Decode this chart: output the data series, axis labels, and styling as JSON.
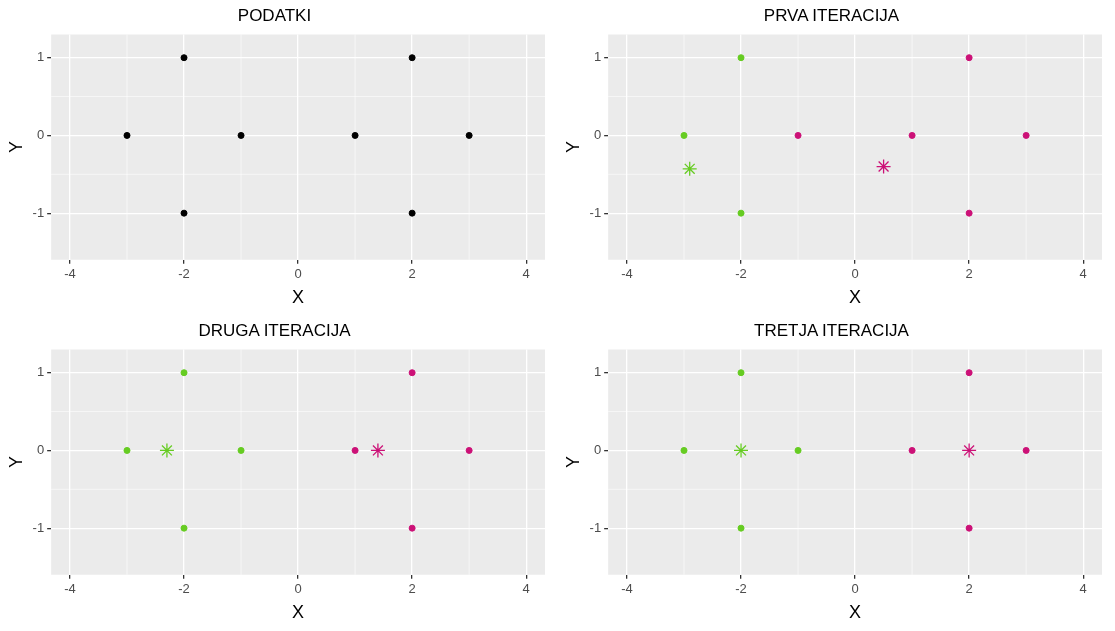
{
  "chart_data": [
    {
      "type": "scatter",
      "title": "PODATKI",
      "xlabel": "X",
      "ylabel": "Y",
      "xlim": [
        -4.33,
        4.33
      ],
      "ylim": [
        -1.6,
        1.3
      ],
      "xticks": [
        -4,
        -2,
        0,
        2,
        4
      ],
      "yticks": [
        -1,
        0,
        1
      ],
      "grid": true,
      "marker": "circle",
      "legend": false,
      "series": [
        {
          "color": "#000000",
          "x": [
            -3,
            -2,
            -2,
            -1,
            1,
            2,
            2,
            3
          ],
          "values": [
            0,
            1,
            -1,
            0,
            0,
            1,
            -1,
            0
          ]
        }
      ]
    },
    {
      "type": "scatter",
      "title": "PRVA ITERACIJA",
      "xlabel": "X",
      "ylabel": "Y",
      "xlim": [
        -4.33,
        4.33
      ],
      "ylim": [
        -1.6,
        1.3
      ],
      "xticks": [
        -4,
        -2,
        0,
        2,
        4
      ],
      "yticks": [
        -1,
        0,
        1
      ],
      "grid": true,
      "marker": "circle",
      "legend": false,
      "series": [
        {
          "color": "#66cc22",
          "x": [
            -3,
            -2,
            -2
          ],
          "values": [
            0,
            1,
            -1
          ]
        },
        {
          "color": "#cc1177",
          "x": [
            -1,
            1,
            2,
            2,
            3
          ],
          "values": [
            0,
            0,
            1,
            -1,
            0
          ]
        },
        {
          "color": "#66cc22",
          "marker": "cross",
          "x": [
            -2.9
          ],
          "values": [
            -0.43
          ]
        },
        {
          "color": "#cc1177",
          "marker": "cross",
          "x": [
            0.5
          ],
          "values": [
            -0.4
          ]
        }
      ]
    },
    {
      "type": "scatter",
      "title": "DRUGA ITERACIJA",
      "xlabel": "X",
      "ylabel": "Y",
      "xlim": [
        -4.33,
        4.33
      ],
      "ylim": [
        -1.6,
        1.3
      ],
      "xticks": [
        -4,
        -2,
        0,
        2,
        4
      ],
      "yticks": [
        -1,
        0,
        1
      ],
      "grid": true,
      "marker": "circle",
      "legend": false,
      "series": [
        {
          "color": "#66cc22",
          "x": [
            -3,
            -2,
            -2,
            -1
          ],
          "values": [
            0,
            1,
            -1,
            0
          ]
        },
        {
          "color": "#cc1177",
          "x": [
            1,
            2,
            2,
            3
          ],
          "values": [
            0,
            1,
            -1,
            0
          ]
        },
        {
          "color": "#66cc22",
          "marker": "cross",
          "x": [
            -2.3
          ],
          "values": [
            0
          ]
        },
        {
          "color": "#cc1177",
          "marker": "cross",
          "x": [
            1.4
          ],
          "values": [
            0
          ]
        }
      ]
    },
    {
      "type": "scatter",
      "title": "TRETJA ITERACIJA",
      "xlabel": "X",
      "ylabel": "Y",
      "xlim": [
        -4.33,
        4.33
      ],
      "ylim": [
        -1.6,
        1.3
      ],
      "xticks": [
        -4,
        -2,
        0,
        2,
        4
      ],
      "yticks": [
        -1,
        0,
        1
      ],
      "grid": true,
      "marker": "circle",
      "legend": false,
      "series": [
        {
          "color": "#66cc22",
          "x": [
            -3,
            -2,
            -2,
            -1
          ],
          "values": [
            0,
            1,
            -1,
            0
          ]
        },
        {
          "color": "#cc1177",
          "x": [
            1,
            2,
            2,
            3
          ],
          "values": [
            0,
            1,
            -1,
            0
          ]
        },
        {
          "color": "#66cc22",
          "marker": "cross",
          "x": [
            -2
          ],
          "values": [
            0
          ]
        },
        {
          "color": "#cc1177",
          "marker": "cross",
          "x": [
            2
          ],
          "values": [
            0
          ]
        }
      ]
    }
  ]
}
